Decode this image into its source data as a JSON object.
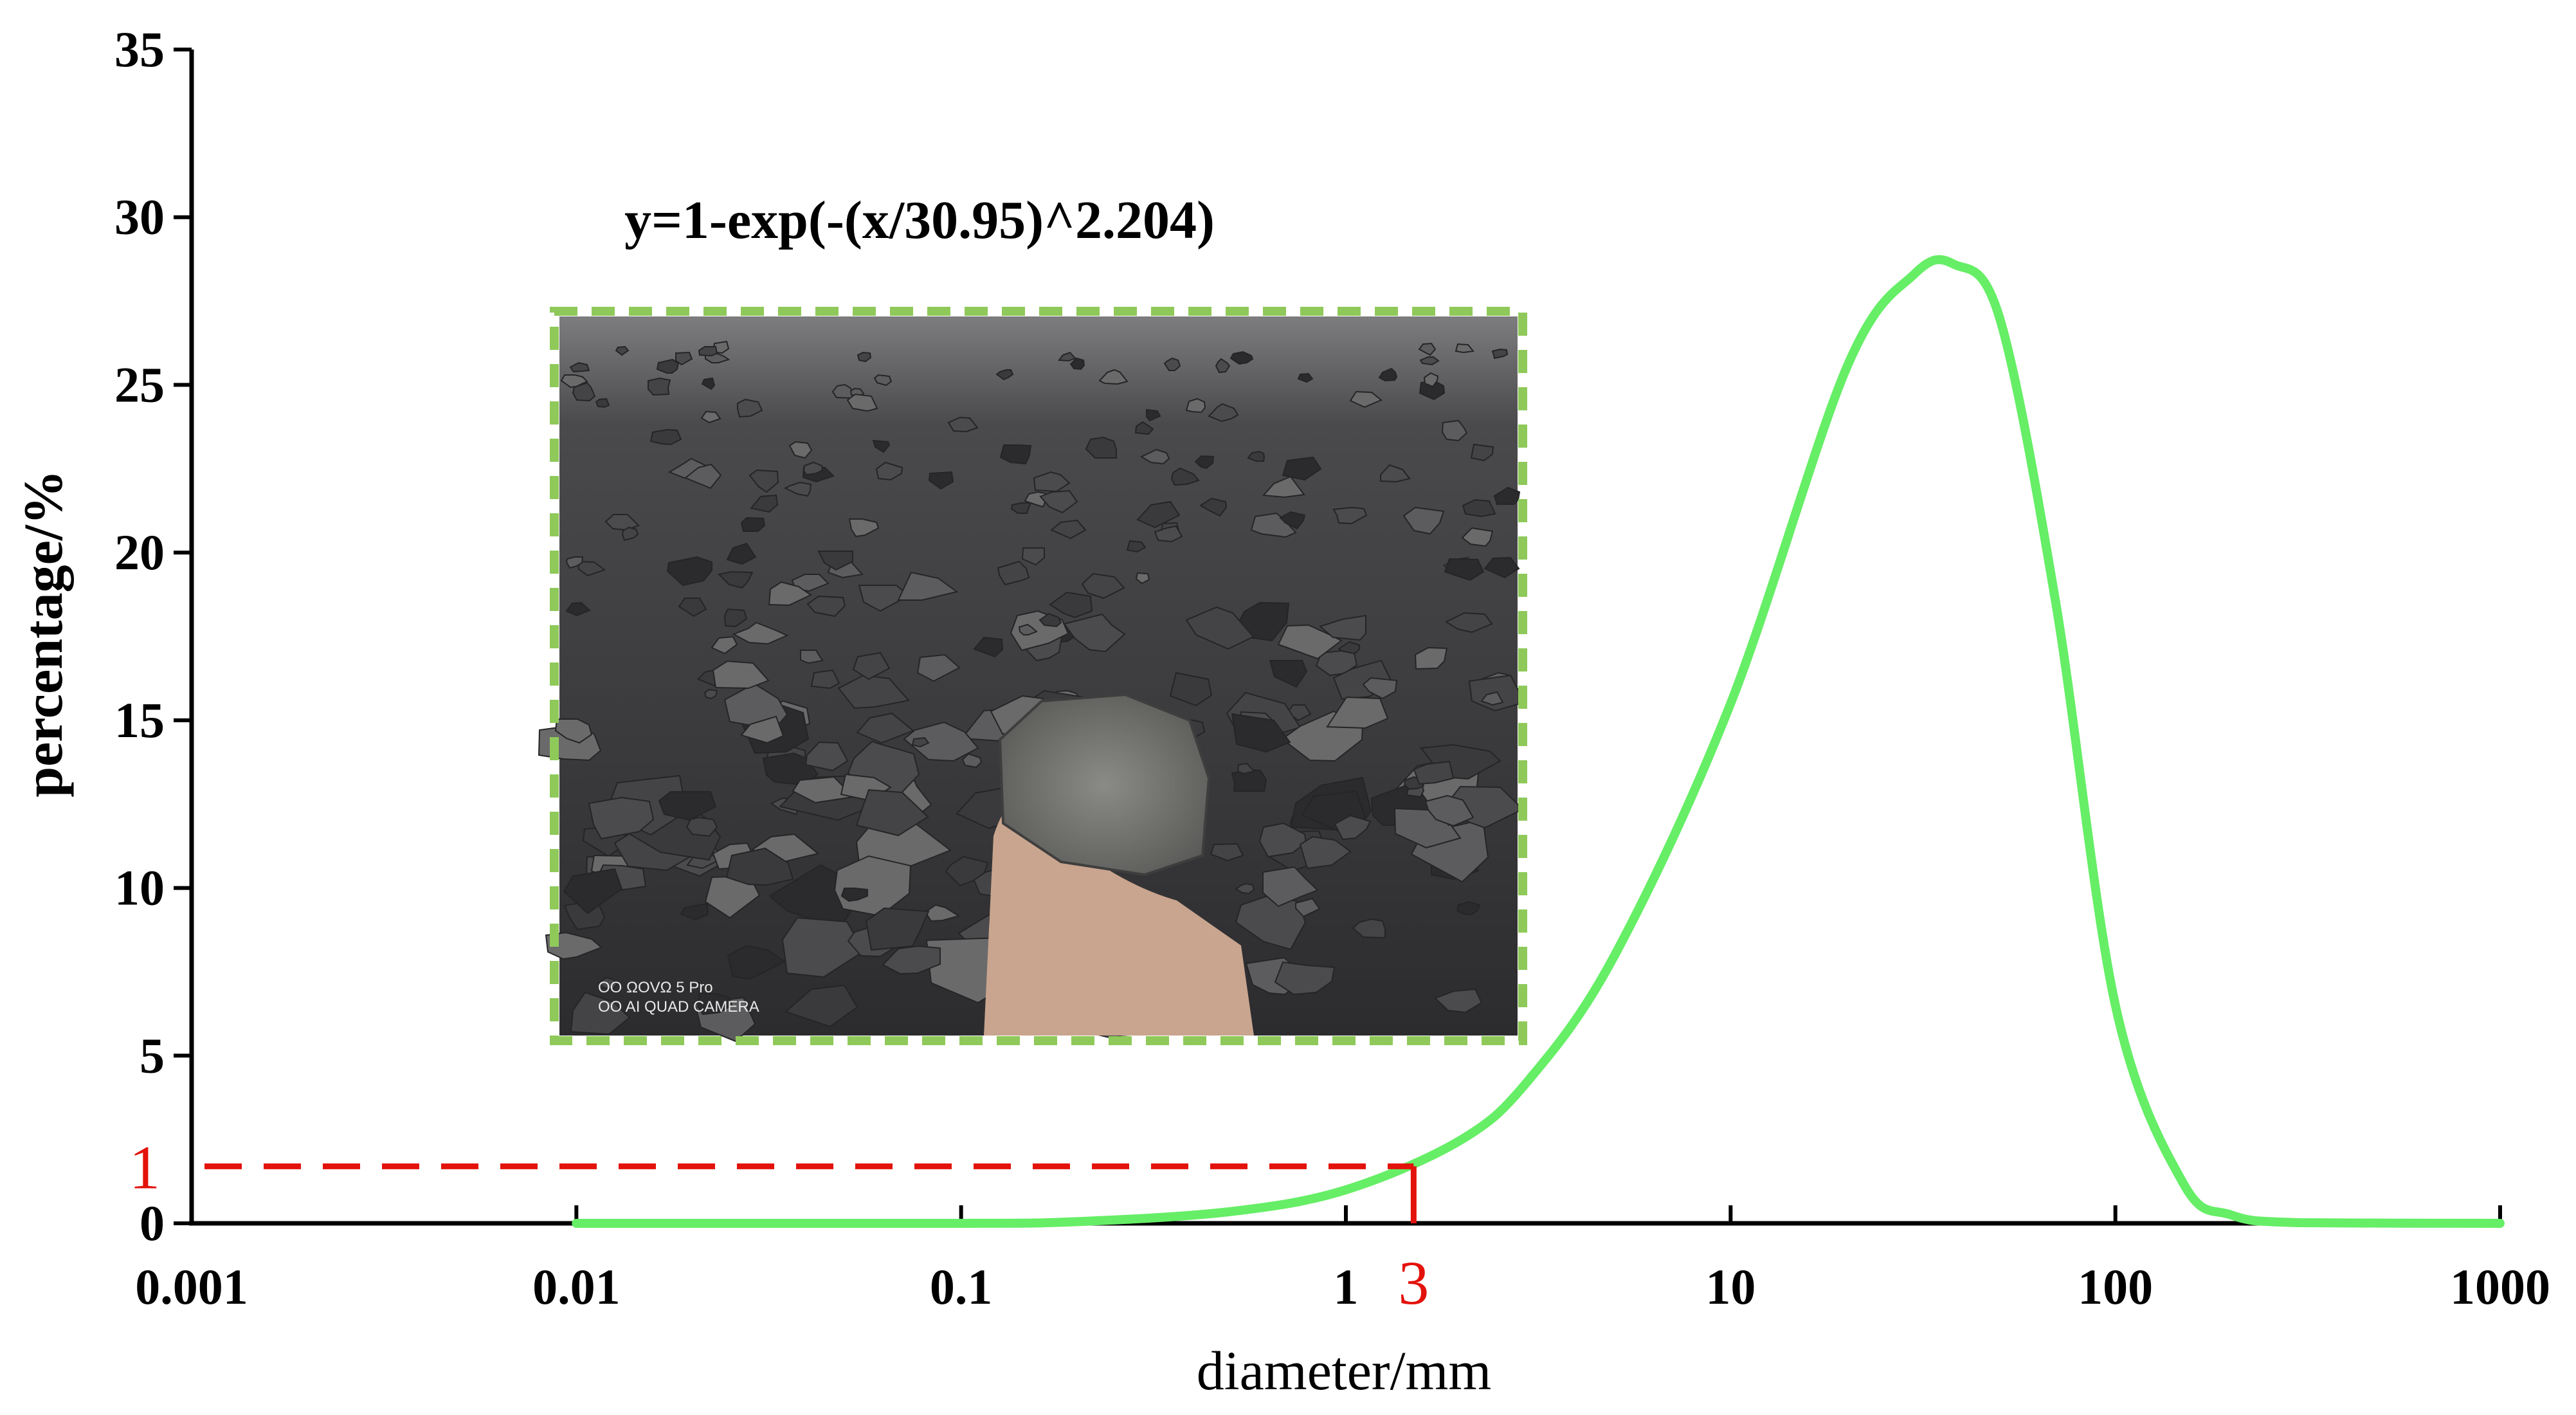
{
  "chart_data": {
    "type": "line",
    "x_scale": "log",
    "xlim": [
      0.001,
      1000
    ],
    "ylim": [
      0,
      35
    ],
    "x_ticks": [
      "0.001",
      "0.01",
      "0.1",
      "1",
      "10",
      "100",
      "1000"
    ],
    "y_ticks": [
      "0",
      "5",
      "10",
      "15",
      "20",
      "25",
      "30",
      "35"
    ],
    "xlabel": "diameter/mm",
    "ylabel": "percentage/%",
    "annotation": "y=1-exp(-(x/30.95)^2.204)",
    "series": [
      {
        "color": "#66ee66",
        "x": [
          0.01,
          0.1,
          0.2,
          0.5,
          1,
          2,
          3,
          5,
          10,
          20,
          30,
          38,
          50,
          70,
          100,
          150,
          200,
          300,
          1000
        ],
        "y": [
          0,
          0,
          0.05,
          0.35,
          1.0,
          2.5,
          4.3,
          8.0,
          15.5,
          25.5,
          28.3,
          28.6,
          27.0,
          18.5,
          6.5,
          1.2,
          0.25,
          0.02,
          0
        ]
      }
    ],
    "marker": {
      "x": 1.5,
      "y": 1.7,
      "x_label": "3",
      "y_label": "1",
      "color": "#e3120b"
    }
  },
  "inset_photo": {
    "border_color": "#8fc95a",
    "caption_line1": "OO  ΩOVΩ 5 Pro",
    "caption_line2": "OO  AI QUAD CAMERA"
  }
}
